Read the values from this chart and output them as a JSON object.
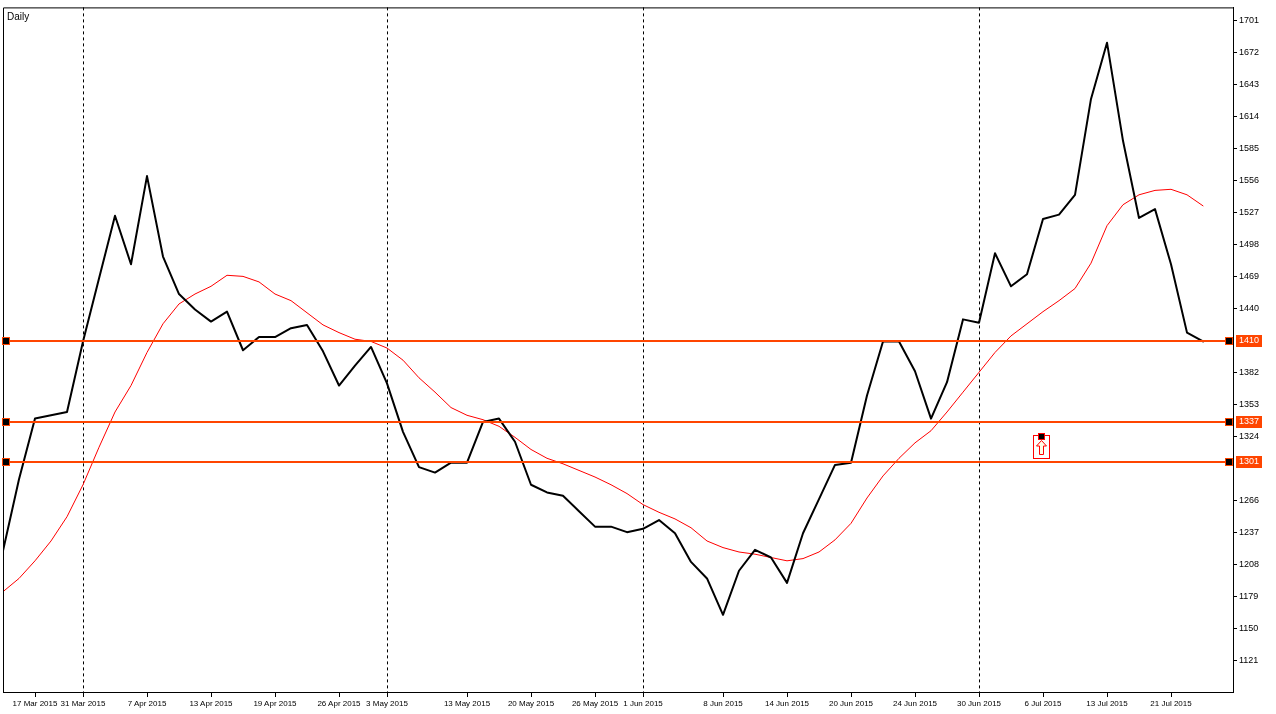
{
  "chart_data": {
    "type": "line",
    "title": "Daily",
    "categories": [
      null,
      null,
      "17 Mar 2015",
      null,
      null,
      "31 Mar 2015",
      null,
      null,
      null,
      "7 Apr 2015",
      null,
      null,
      null,
      "13 Apr 2015",
      null,
      null,
      null,
      "19 Apr 2015",
      null,
      null,
      null,
      "26 Apr 2015",
      null,
      null,
      "3 May 2015",
      null,
      null,
      null,
      null,
      "13 May 2015",
      null,
      null,
      null,
      "20 May 2015",
      null,
      null,
      null,
      "26 May 2015",
      null,
      null,
      "1 Jun 2015",
      null,
      null,
      null,
      null,
      "8 Jun 2015",
      null,
      null,
      null,
      "14 Jun 2015",
      null,
      null,
      null,
      "20 Jun 2015",
      null,
      null,
      null,
      "24 Jun 2015",
      null,
      null,
      null,
      "30 Jun 2015",
      null,
      null,
      null,
      "6 Jul 2015",
      null,
      null,
      null,
      "13 Jul 2015",
      null,
      null,
      null,
      "21 Jul 2015",
      null,
      null
    ],
    "series": [
      {
        "color": "#000000",
        "values": [
          1220,
          1285,
          1340,
          1343,
          1346,
          1410,
          1467,
          1524,
          1480,
          1560,
          1487,
          1453,
          1439,
          1428,
          1437,
          1402,
          1414,
          1414,
          1422,
          1425,
          1401,
          1370,
          1388,
          1405,
          1372,
          1328,
          1296,
          1291,
          1300,
          1300,
          1337,
          1340,
          1319,
          1280,
          1273,
          1270,
          1256,
          1242,
          1242,
          1237,
          1240,
          1248,
          1236,
          1210,
          1195,
          1162,
          1202,
          1221,
          1214,
          1191,
          1236,
          1267,
          1298,
          1300,
          1361,
          1410,
          1410,
          1383,
          1340,
          1373,
          1430,
          1427,
          1490,
          1460,
          1471,
          1521,
          1525,
          1543,
          1630,
          1681,
          1592,
          1522,
          1530,
          1480,
          1418,
          1410
        ]
      },
      {
        "color": "#ff0000",
        "values": [
          1183,
          1195,
          1211,
          1229,
          1251,
          1280,
          1314,
          1346,
          1370,
          1400,
          1426,
          1444,
          1453,
          1460,
          1470,
          1469,
          1464,
          1453,
          1447,
          1436,
          1425,
          1418,
          1412,
          1410,
          1404,
          1393,
          1377,
          1364,
          1350,
          1343,
          1339,
          1333,
          1323,
          1312,
          1304,
          1299,
          1293,
          1287,
          1280,
          1272,
          1262,
          1255,
          1249,
          1241,
          1229,
          1223,
          1219,
          1217,
          1214,
          1211,
          1213,
          1219,
          1230,
          1245,
          1268,
          1288,
          1304,
          1318,
          1329,
          1346,
          1364,
          1382,
          1400,
          1415,
          1426,
          1437,
          1447,
          1458,
          1481,
          1515,
          1534,
          1543,
          1547,
          1548,
          1543,
          1533
        ]
      }
    ],
    "ylim": [
      1092,
      1713
    ],
    "yticks": [
      1121,
      1150,
      1179,
      1208,
      1237,
      1266,
      1324,
      1353,
      1382,
      1440,
      1469,
      1498,
      1527,
      1556,
      1585,
      1614,
      1643,
      1672,
      1701
    ],
    "ref_lines": [
      {
        "axis": "x",
        "value": "31 Mar 2015",
        "color": "#000000",
        "line_style": "dashed"
      },
      {
        "axis": "x",
        "value": "3 May 2015",
        "color": "#000000",
        "line_style": "dashed"
      },
      {
        "axis": "x",
        "value": "1 Jun 2015",
        "color": "#000000",
        "line_style": "dashed"
      },
      {
        "axis": "x",
        "value": "30 Jun 2015",
        "color": "#000000",
        "line_style": "dashed"
      },
      {
        "axis": "y",
        "value": 1410,
        "label": "1410",
        "color": "#ff4500"
      },
      {
        "axis": "y",
        "value": 1337,
        "label": "1337",
        "color": "#ff4500"
      },
      {
        "axis": "y",
        "value": 1301,
        "label": "1301",
        "color": "#ff4500"
      }
    ],
    "marker": "none"
  }
}
